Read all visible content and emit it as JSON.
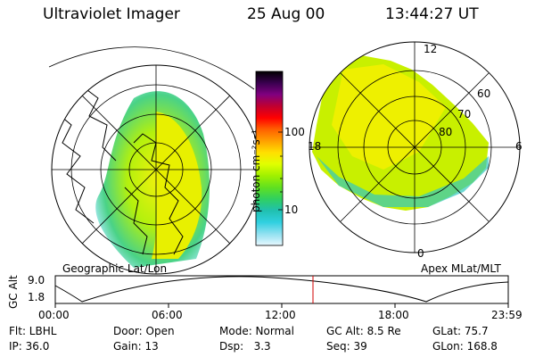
{
  "header": {
    "instrument": "Ultraviolet Imager",
    "date": "25 Aug 00",
    "time": "13:44:27 UT"
  },
  "colorbar": {
    "unit_label": "photon cm⁻²s⁻¹",
    "ticks": [
      "100",
      "10"
    ],
    "colors": [
      "#000000",
      "#3a0050",
      "#800080",
      "#c00030",
      "#ff0000",
      "#ff6000",
      "#ffa000",
      "#ffe000",
      "#e0ff00",
      "#a0f000",
      "#60e020",
      "#30d060",
      "#20c0b0",
      "#30d0e0",
      "#90e0f0",
      "#e8f8ff"
    ]
  },
  "left_map": {
    "caption": "Geographic Lat/Lon"
  },
  "right_map": {
    "caption": "Apex MLat/MLT",
    "mlt_labels": [
      "12",
      "18",
      "6",
      "0"
    ],
    "mlat_labels": [
      "60",
      "70",
      "80"
    ]
  },
  "timeline": {
    "axis_label": "GC Alt",
    "y_ticks": [
      "9.0",
      "1.8"
    ],
    "x_ticks": [
      "00:00",
      "06:00",
      "12:00",
      "18:00",
      "23:59"
    ],
    "current_time_marker": "13:44:27"
  },
  "footer": {
    "row1": [
      "Flt: LBHL",
      "Door: Open",
      "Mode: Normal",
      "GC Alt: 8.5 Re",
      "GLat: 75.7"
    ],
    "row2": [
      "IP: 36.0",
      "Gain: 13",
      "Dsp:   3.3",
      "Seq: 39",
      "GLon: 168.8"
    ]
  }
}
